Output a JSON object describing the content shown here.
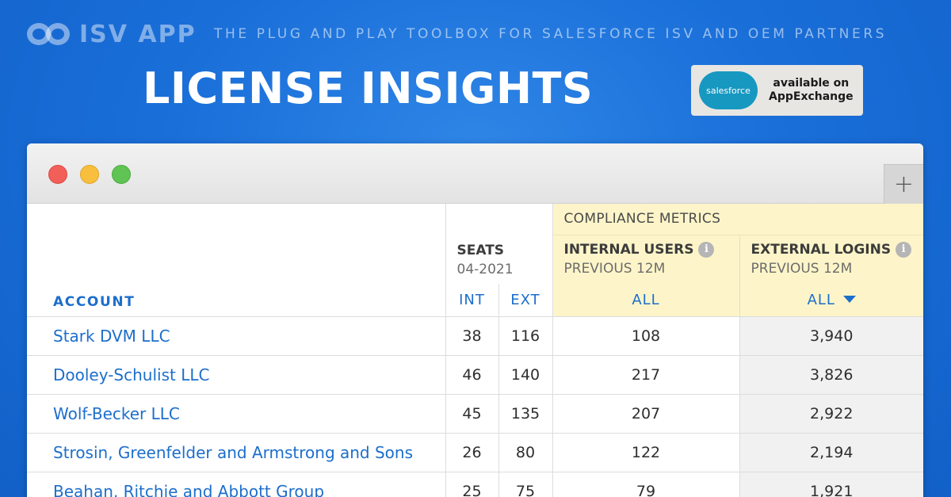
{
  "brand": {
    "name": "ISV APP",
    "tagline": "THE PLUG AND PLAY TOOLBOX FOR SALESFORCE ISV AND OEM PARTNERS"
  },
  "headline": "LICENSE INSIGHTS",
  "appexchange": {
    "logo_text": "salesforce",
    "line1": "available on",
    "line2": "AppExchange"
  },
  "window": {
    "new_tab_icon": "+"
  },
  "table": {
    "group_header": "COMPLIANCE METRICS",
    "account_header": "ACCOUNT",
    "seats": {
      "title": "SEATS",
      "subtitle": "04-2021",
      "int": "INT",
      "ext": "EXT"
    },
    "internal_users": {
      "title": "INTERNAL USERS",
      "subtitle": "PREVIOUS 12M",
      "filter": "ALL"
    },
    "external_logins": {
      "title": "EXTERNAL LOGINS",
      "subtitle": "PREVIOUS 12M",
      "filter": "ALL"
    },
    "info_icon": "i",
    "rows": [
      {
        "account": "Stark DVM LLC",
        "int": "38",
        "ext": "116",
        "internal_users": "108",
        "external_logins": "3,940"
      },
      {
        "account": "Dooley-Schulist LLC",
        "int": "46",
        "ext": "140",
        "internal_users": "217",
        "external_logins": "3,826"
      },
      {
        "account": "Wolf-Becker LLC",
        "int": "45",
        "ext": "135",
        "internal_users": "207",
        "external_logins": "2,922"
      },
      {
        "account": "Strosin, Greenfelder and Armstrong and Sons",
        "int": "26",
        "ext": "80",
        "internal_users": "122",
        "external_logins": "2,194"
      },
      {
        "account": "Beahan, Ritchie and Abbott Group",
        "int": "25",
        "ext": "75",
        "internal_users": "79",
        "external_logins": "1,921"
      }
    ]
  }
}
